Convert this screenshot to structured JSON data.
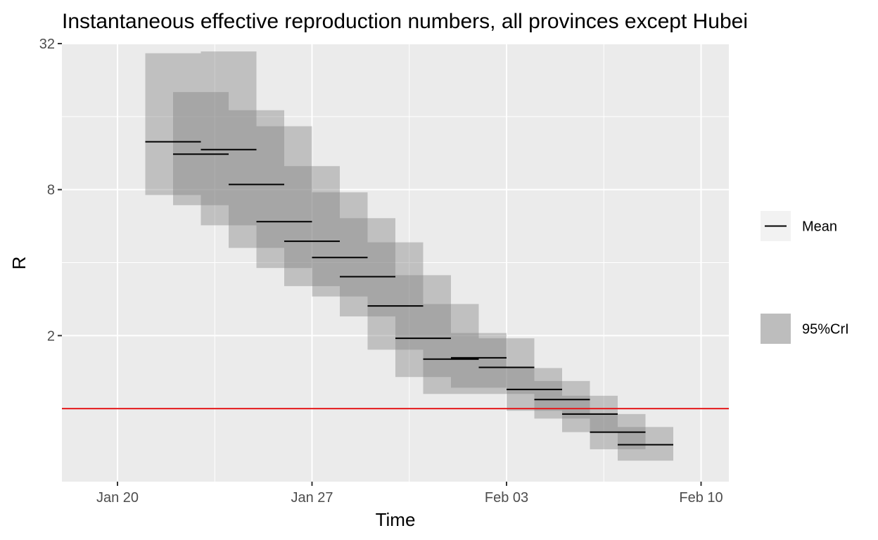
{
  "chart_data": {
    "type": "step-interval",
    "title": "Instantaneous effective reproduction numbers, all provinces except Hubei",
    "xlabel": "Time",
    "ylabel": "R",
    "x_tick_labels": [
      "Jan 20",
      "Jan 27",
      "Feb 03",
      "Feb 10"
    ],
    "x_tick_dates": [
      "2020-01-20",
      "2020-01-27",
      "2020-02-03",
      "2020-02-10"
    ],
    "y_tick_labels": [
      "2",
      "8",
      "32"
    ],
    "y_ticks": [
      2,
      8,
      32
    ],
    "y_scale": "log2",
    "xlim": [
      "2020-01-18",
      "2020-02-11"
    ],
    "ylim": [
      0.5,
      32
    ],
    "reference_line": {
      "y": 1,
      "color": "#e41a1c"
    },
    "series": [
      {
        "start": "2020-01-21",
        "end": "2020-01-23",
        "mean": 12.6,
        "lower": 7.6,
        "upper": 29.2
      },
      {
        "start": "2020-01-22",
        "end": "2020-01-24",
        "mean": 11.2,
        "lower": 6.9,
        "upper": 20.2
      },
      {
        "start": "2020-01-23",
        "end": "2020-01-25",
        "mean": 11.7,
        "lower": 5.7,
        "upper": 29.7
      },
      {
        "start": "2020-01-24",
        "end": "2020-01-26",
        "mean": 8.4,
        "lower": 4.6,
        "upper": 17.0
      },
      {
        "start": "2020-01-25",
        "end": "2020-01-27",
        "mean": 5.9,
        "lower": 3.8,
        "upper": 14.6
      },
      {
        "start": "2020-01-26",
        "end": "2020-01-28",
        "mean": 4.9,
        "lower": 3.2,
        "upper": 10.0
      },
      {
        "start": "2020-01-27",
        "end": "2020-01-29",
        "mean": 4.2,
        "lower": 2.9,
        "upper": 7.8
      },
      {
        "start": "2020-01-28",
        "end": "2020-01-30",
        "mean": 3.5,
        "lower": 2.4,
        "upper": 6.1
      },
      {
        "start": "2020-01-29",
        "end": "2020-01-31",
        "mean": 2.65,
        "lower": 1.75,
        "upper": 4.85
      },
      {
        "start": "2020-01-30",
        "end": "2020-02-01",
        "mean": 1.95,
        "lower": 1.35,
        "upper": 3.55
      },
      {
        "start": "2020-01-31",
        "end": "2020-02-02",
        "mean": 1.6,
        "lower": 1.15,
        "upper": 2.7
      },
      {
        "start": "2020-02-01",
        "end": "2020-02-03",
        "mean": 1.62,
        "lower": 1.22,
        "upper": 2.05
      },
      {
        "start": "2020-02-02",
        "end": "2020-02-04",
        "mean": 1.48,
        "lower": 1.15,
        "upper": 1.95
      },
      {
        "start": "2020-02-03",
        "end": "2020-02-05",
        "mean": 1.2,
        "lower": 0.98,
        "upper": 1.47
      },
      {
        "start": "2020-02-04",
        "end": "2020-02-06",
        "mean": 1.09,
        "lower": 0.91,
        "upper": 1.3
      },
      {
        "start": "2020-02-05",
        "end": "2020-02-07",
        "mean": 0.95,
        "lower": 0.8,
        "upper": 1.13
      },
      {
        "start": "2020-02-06",
        "end": "2020-02-08",
        "mean": 0.8,
        "lower": 0.68,
        "upper": 0.95
      },
      {
        "start": "2020-02-07",
        "end": "2020-02-09",
        "mean": 0.71,
        "lower": 0.61,
        "upper": 0.84
      }
    ],
    "legend": {
      "placement": "right",
      "items": [
        {
          "label": "Mean",
          "symbol": "line",
          "color": "#000000"
        },
        {
          "label": "95%CrI",
          "symbol": "box",
          "color": "#bdbdbd"
        }
      ]
    },
    "colors": {
      "panel_background": "#ebebeb",
      "grid": "#ffffff",
      "ribbon": "#808080",
      "mean_line": "#000000"
    }
  }
}
